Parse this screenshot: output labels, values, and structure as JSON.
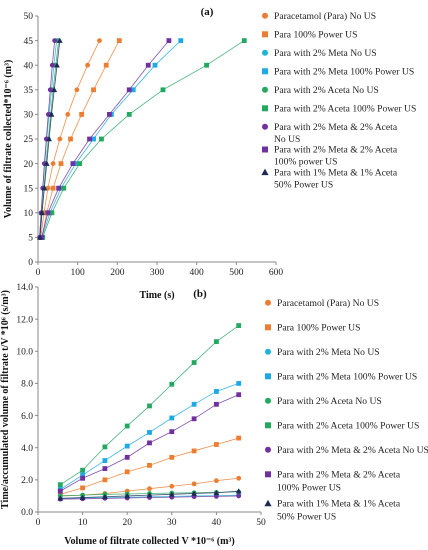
{
  "chart_data": [
    {
      "type": "scatter",
      "panel_label": "(a)",
      "xlabel": "Time (s)",
      "ylabel": "Volume of filtrate collected*10⁻⁶ (m³)",
      "xlim": [
        0,
        600
      ],
      "ylim": [
        0,
        50
      ],
      "xticks": [
        "0",
        "100",
        "200",
        "300",
        "400",
        "500",
        "600"
      ],
      "yticks": [
        "0",
        "5",
        "10",
        "15",
        "20",
        "25",
        "30",
        "35",
        "40",
        "45",
        "50"
      ],
      "legend_position": "right",
      "grid": false,
      "series": [
        {
          "name": "Paracetamol (Para) No US",
          "color": "#ED7D31",
          "marker": "circle",
          "x": [
            7,
            15,
            25,
            38,
            55,
            75,
            98,
            125,
            155
          ],
          "y": [
            5,
            10,
            15,
            20,
            25,
            30,
            35,
            40,
            45
          ]
        },
        {
          "name": "Para 100% Power US",
          "color": "#ED7D31",
          "marker": "square",
          "x": [
            10,
            22,
            38,
            58,
            82,
            110,
            140,
            172,
            205
          ],
          "y": [
            5,
            10,
            15,
            20,
            25,
            30,
            35,
            40,
            45
          ]
        },
        {
          "name": "Para with 2% Meta No US",
          "color": "#1FB4D7",
          "marker": "circle",
          "x": [
            4,
            8,
            12,
            17,
            22,
            28,
            34,
            40,
            47
          ],
          "y": [
            5,
            10,
            15,
            20,
            25,
            30,
            35,
            40,
            45
          ]
        },
        {
          "name": "Para with 2% Meta 100% Power US",
          "color": "#1CA9E6",
          "marker": "square",
          "x": [
            10,
            30,
            58,
            95,
            140,
            185,
            240,
            295,
            360
          ],
          "y": [
            5,
            10,
            15,
            20,
            25,
            30,
            35,
            40,
            45
          ]
        },
        {
          "name": "Para with 2% Aceta No US",
          "color": "#22A85F",
          "marker": "circle",
          "x": [
            5,
            10,
            15,
            20,
            26,
            32,
            38,
            45,
            52
          ],
          "y": [
            5,
            10,
            15,
            20,
            25,
            30,
            35,
            40,
            45
          ]
        },
        {
          "name": "Para with 2% Aceta 100% Power US",
          "color": "#22A85F",
          "marker": "square",
          "x": [
            12,
            35,
            65,
            105,
            160,
            230,
            315,
            425,
            520
          ],
          "y": [
            5,
            10,
            15,
            20,
            25,
            30,
            35,
            40,
            45
          ]
        },
        {
          "name": "Para with 2% Meta & 2% Aceta No US",
          "color": "#7030A0",
          "marker": "circle",
          "x": [
            4,
            8,
            12,
            16,
            21,
            26,
            31,
            36,
            42
          ],
          "y": [
            5,
            10,
            15,
            20,
            25,
            30,
            35,
            40,
            45
          ]
        },
        {
          "name": "Para with 2% Meta & 2% Aceta 100% power US",
          "color": "#7030A0",
          "marker": "square",
          "x": [
            9,
            25,
            52,
            88,
            130,
            180,
            230,
            278,
            330
          ],
          "y": [
            5,
            10,
            15,
            20,
            25,
            30,
            35,
            40,
            45
          ]
        },
        {
          "name": "Para with 1% Meta & 1% Aceta 50% Power US",
          "color": "#1F2A55",
          "marker": "triangle",
          "x": [
            5,
            10,
            16,
            22,
            28,
            34,
            41,
            48,
            55
          ],
          "y": [
            5,
            10,
            15,
            20,
            25,
            30,
            35,
            40,
            45
          ]
        }
      ]
    },
    {
      "type": "scatter",
      "panel_label": "(b)",
      "xlabel": "Volume of filtrate collected V *10⁻⁶ (m³)",
      "ylabel": "Time/accumulated volume of filtrate t/V *10⁶ (s/m³)",
      "xlim": [
        0,
        50
      ],
      "ylim": [
        0,
        14
      ],
      "xticks": [
        "0",
        "10",
        "20",
        "30",
        "40",
        "50"
      ],
      "yticks": [
        "0.0",
        "2.0",
        "4.0",
        "6.0",
        "8.0",
        "10.0",
        "12.0",
        "14.0"
      ],
      "legend_position": "right",
      "grid": false,
      "series": [
        {
          "name": "Paracetamol (Para) No US",
          "color": "#ED7D31",
          "marker": "circle",
          "x": [
            5,
            10,
            15,
            20,
            25,
            30,
            35,
            40,
            45
          ],
          "y": [
            1.0,
            1.05,
            1.15,
            1.3,
            1.45,
            1.6,
            1.75,
            1.95,
            2.1
          ]
        },
        {
          "name": "Para 100% Power US",
          "color": "#ED7D31",
          "marker": "square",
          "x": [
            5,
            10,
            15,
            20,
            25,
            30,
            35,
            40,
            45
          ],
          "y": [
            1.1,
            1.5,
            2.0,
            2.5,
            2.9,
            3.4,
            3.8,
            4.2,
            4.6
          ]
        },
        {
          "name": "Para with 2% Meta No US",
          "color": "#1FB4D7",
          "marker": "circle",
          "x": [
            5,
            10,
            15,
            20,
            25,
            30,
            35,
            40,
            45
          ],
          "y": [
            0.85,
            0.88,
            0.9,
            0.92,
            0.95,
            0.97,
            1.0,
            1.02,
            1.05
          ]
        },
        {
          "name": "Para with 2% Meta 100% Power US",
          "color": "#1CA9E6",
          "marker": "square",
          "x": [
            5,
            10,
            15,
            20,
            25,
            30,
            35,
            40,
            45
          ],
          "y": [
            1.4,
            2.3,
            3.2,
            4.1,
            4.95,
            5.85,
            6.7,
            7.5,
            8.0
          ]
        },
        {
          "name": "Para with 2% Aceta No US",
          "color": "#22A85F",
          "marker": "circle",
          "x": [
            5,
            10,
            15,
            20,
            25,
            30,
            35,
            40,
            45
          ],
          "y": [
            1.0,
            1.05,
            1.1,
            1.12,
            1.15,
            1.18,
            1.2,
            1.22,
            1.25
          ]
        },
        {
          "name": "Para with 2% Aceta 100% Power US",
          "color": "#22A85F",
          "marker": "square",
          "x": [
            5,
            10,
            15,
            20,
            25,
            30,
            35,
            40,
            45
          ],
          "y": [
            1.7,
            2.6,
            4.05,
            5.35,
            6.6,
            7.95,
            9.3,
            10.6,
            11.6
          ]
        },
        {
          "name": "Para with 2% Meta & 2% Aceta No US",
          "color": "#7030A0",
          "marker": "circle",
          "x": [
            5,
            10,
            15,
            20,
            25,
            30,
            35,
            40,
            45
          ],
          "y": [
            0.8,
            0.82,
            0.85,
            0.87,
            0.9,
            0.92,
            0.95,
            0.97,
            1.0
          ]
        },
        {
          "name": "Para with 2% Meta & 2% Aceta 100% Power US",
          "color": "#7030A0",
          "marker": "square",
          "x": [
            5,
            10,
            15,
            20,
            25,
            30,
            35,
            40,
            45
          ],
          "y": [
            1.3,
            2.1,
            2.7,
            3.4,
            4.3,
            5.0,
            5.8,
            6.7,
            7.3
          ]
        },
        {
          "name": "Para with 1% Meta & 1% Aceta 50% Power US",
          "color": "#1F2A55",
          "marker": "triangle",
          "x": [
            5,
            10,
            15,
            20,
            25,
            30,
            35,
            40,
            45
          ],
          "y": [
            0.85,
            0.9,
            0.95,
            1.0,
            1.05,
            1.1,
            1.15,
            1.2,
            1.3
          ]
        }
      ]
    }
  ]
}
